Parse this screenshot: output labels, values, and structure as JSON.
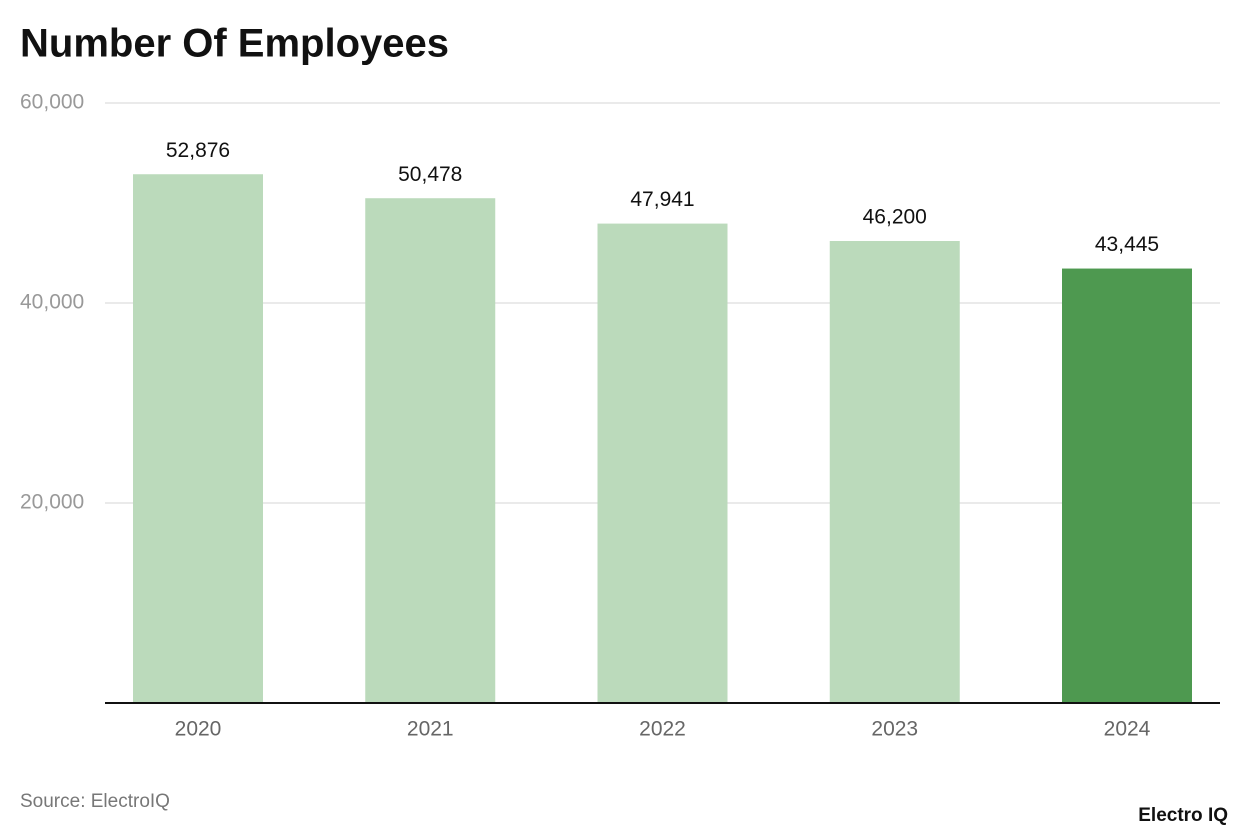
{
  "chart_data": {
    "type": "bar",
    "title": "Number Of Employees",
    "categories": [
      "2020",
      "2021",
      "2022",
      "2023",
      "2024"
    ],
    "values": [
      52876,
      50478,
      47941,
      46200,
      43445
    ],
    "value_labels": [
      "52,876",
      "50,478",
      "47,941",
      "46,200",
      "43,445"
    ],
    "colors": [
      "#bbdabb",
      "#bbdabb",
      "#bbdabb",
      "#bbdabb",
      "#4e9950"
    ],
    "ylim": [
      0,
      60000
    ],
    "yticks": [
      {
        "value": 20000,
        "label": "20,000"
      },
      {
        "value": 40000,
        "label": "40,000"
      },
      {
        "value": 60000,
        "label": "60,000"
      }
    ],
    "grid": true,
    "source": "Source: ElectroIQ",
    "brand": "Electro IQ"
  }
}
